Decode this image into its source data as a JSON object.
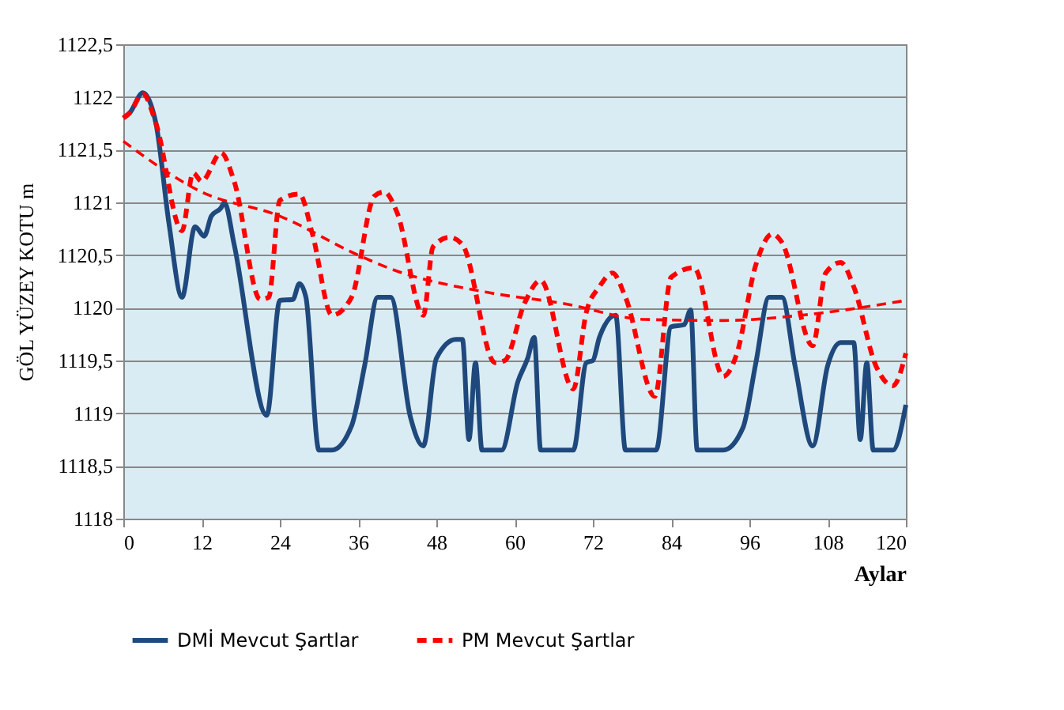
{
  "chart_data": {
    "type": "line",
    "xlabel": "Aylar",
    "ylabel": "GÖL YÜZEY KOTU m",
    "xlim": [
      0,
      120
    ],
    "xticks": [
      0,
      12,
      24,
      36,
      48,
      60,
      72,
      84,
      96,
      108,
      120
    ],
    "ylim": [
      1118,
      1122.5
    ],
    "yticks": [
      {
        "value": 1118,
        "label": "1118"
      },
      {
        "value": 1118.5,
        "label": "1118,5"
      },
      {
        "value": 1119,
        "label": "1119"
      },
      {
        "value": 1119.5,
        "label": "1119,5"
      },
      {
        "value": 1120,
        "label": "1120"
      },
      {
        "value": 1120.5,
        "label": "1120,5"
      },
      {
        "value": 1121,
        "label": "1121"
      },
      {
        "value": 1121.5,
        "label": "1121,5"
      },
      {
        "value": 1122,
        "label": "1122"
      },
      {
        "value": 1122.5,
        "label": "1122,5"
      }
    ],
    "grid": "y",
    "legend": "bottom",
    "series": [
      {
        "name": "DMİ Mevcut Şartlar",
        "color": "#1f497d",
        "line_style": "solid",
        "x": [
          0,
          1,
          3,
          5,
          7,
          9,
          11,
          12.4,
          13.5,
          15,
          15.5,
          17,
          22,
          24,
          26,
          27,
          28,
          30,
          32,
          35,
          37,
          39,
          41,
          44,
          46,
          48,
          51,
          52,
          53,
          54,
          55,
          58,
          60.5,
          62,
          63,
          64,
          69,
          71,
          72,
          73,
          75.5,
          77,
          81.7,
          84,
          86,
          87,
          88,
          92,
          95,
          97,
          99,
          101,
          103,
          105.7,
          108,
          110,
          112,
          113,
          114,
          115,
          118,
          120
        ],
        "values": [
          1121.8,
          1121.85,
          1122.04,
          1121.75,
          1120.8,
          1120.1,
          1120.77,
          1120.68,
          1120.87,
          1120.95,
          1121.0,
          1120.6,
          1118.98,
          1120.07,
          1120.08,
          1120.23,
          1120.1,
          1118.65,
          1118.65,
          1118.88,
          1119.45,
          1120.1,
          1120.1,
          1118.97,
          1118.69,
          1119.52,
          1119.7,
          1119.7,
          1118.75,
          1119.48,
          1118.65,
          1118.65,
          1119.3,
          1119.52,
          1119.72,
          1118.65,
          1118.65,
          1119.48,
          1119.5,
          1119.72,
          1119.93,
          1118.65,
          1118.65,
          1119.82,
          1119.84,
          1119.98,
          1118.65,
          1118.65,
          1118.86,
          1119.48,
          1120.1,
          1120.1,
          1119.45,
          1118.69,
          1119.45,
          1119.67,
          1119.67,
          1118.75,
          1119.48,
          1118.65,
          1118.65,
          1119.08
        ]
      },
      {
        "name": "PM Mevcut Şartlar",
        "color": "#ff0000",
        "line_style": "dashed",
        "x": [
          0,
          1,
          3,
          5,
          9,
          10.7,
          12,
          15,
          17,
          21,
          22.3,
          24,
          27,
          29,
          32,
          35,
          38.5,
          40,
          42,
          46,
          47.5,
          50,
          52,
          57,
          58.5,
          61.5,
          64,
          69,
          71,
          73,
          75,
          77,
          81.5,
          84,
          87.5,
          92,
          94,
          97,
          99.5,
          101,
          105.7,
          107.7,
          110,
          112,
          115.4,
          118,
          120
        ],
        "values": [
          1121.8,
          1121.85,
          1122.03,
          1121.75,
          1120.73,
          1121.28,
          1121.2,
          1121.47,
          1121.2,
          1120.08,
          1120.1,
          1121.02,
          1121.08,
          1120.7,
          1119.93,
          1120.1,
          1121.06,
          1121.1,
          1120.9,
          1119.93,
          1120.58,
          1120.67,
          1120.6,
          1119.48,
          1119.5,
          1120.04,
          1120.26,
          1119.23,
          1119.96,
          1120.2,
          1120.33,
          1120.1,
          1119.16,
          1120.29,
          1120.38,
          1119.35,
          1119.55,
          1120.41,
          1120.7,
          1120.62,
          1119.64,
          1120.33,
          1120.43,
          1120.2,
          1119.45,
          1119.26,
          1119.57
        ]
      },
      {
        "color": "#ff0000",
        "line_style": "dashed",
        "x": [
          0,
          12,
          24,
          36,
          41,
          55.5,
          67.6,
          80,
          92,
          104,
          120
        ],
        "values": [
          1121.58,
          1121.1,
          1120.87,
          1120.5,
          1120.37,
          1120.15,
          1120.04,
          1119.89,
          1119.88,
          1119.93,
          1120.07
        ]
      }
    ]
  }
}
